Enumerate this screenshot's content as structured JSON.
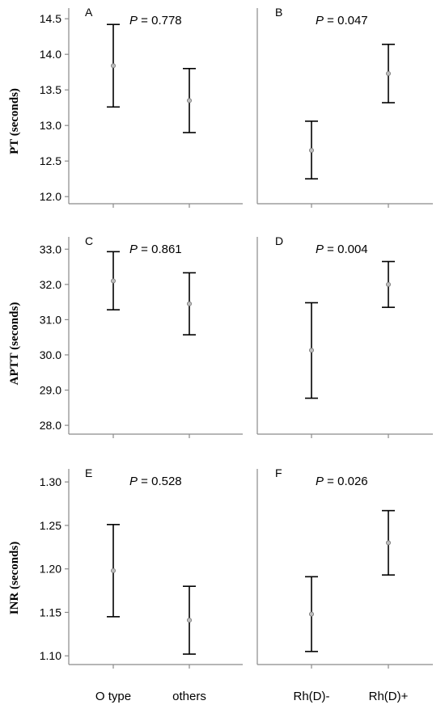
{
  "chart_data": [
    {
      "type": "errorbar",
      "panel": "A",
      "ylabel": "PT (seconds)",
      "p_prefix": "P",
      "p_text": " = 0.778",
      "categories": [
        "O type",
        "others"
      ],
      "ylim": [
        11.9,
        14.65
      ],
      "yticks": [
        "12.0",
        "12.5",
        "13.0",
        "13.5",
        "14.0",
        "14.5"
      ],
      "series": [
        {
          "mean": 13.84,
          "low": 13.26,
          "high": 14.42
        },
        {
          "mean": 13.35,
          "low": 12.9,
          "high": 13.8
        }
      ]
    },
    {
      "type": "errorbar",
      "panel": "B",
      "ylabel": "",
      "p_prefix": "P",
      "p_text": " = 0.047",
      "categories": [
        "Rh(D)-",
        "Rh(D)+"
      ],
      "ylim": [
        11.9,
        14.65
      ],
      "yticks": [],
      "series": [
        {
          "mean": 12.65,
          "low": 12.25,
          "high": 13.06
        },
        {
          "mean": 13.73,
          "low": 13.32,
          "high": 14.14
        }
      ]
    },
    {
      "type": "errorbar",
      "panel": "C",
      "ylabel": "APTT (seconds)",
      "p_prefix": "P",
      "p_text": " = 0.861",
      "categories": [
        "O type",
        "others"
      ],
      "ylim": [
        27.75,
        33.35
      ],
      "yticks": [
        "28.0",
        "29.0",
        "30.0",
        "31.0",
        "32.0",
        "33.0"
      ],
      "series": [
        {
          "mean": 32.1,
          "low": 31.28,
          "high": 32.93
        },
        {
          "mean": 31.45,
          "low": 30.57,
          "high": 32.33
        }
      ]
    },
    {
      "type": "errorbar",
      "panel": "D",
      "ylabel": "",
      "p_prefix": "P",
      "p_text": " = 0.004",
      "categories": [
        "Rh(D)-",
        "Rh(D)+"
      ],
      "ylim": [
        27.75,
        33.35
      ],
      "yticks": [],
      "series": [
        {
          "mean": 30.13,
          "low": 28.77,
          "high": 31.48
        },
        {
          "mean": 32.0,
          "low": 31.35,
          "high": 32.65
        }
      ]
    },
    {
      "type": "errorbar",
      "panel": "E",
      "ylabel": "INR (seconds)",
      "p_prefix": "P",
      "p_text": " = 0.528",
      "categories": [
        "O type",
        "others"
      ],
      "ylim": [
        1.09,
        1.315
      ],
      "yticks": [
        "1.10",
        "1.15",
        "1.20",
        "1.25",
        "1.30"
      ],
      "series": [
        {
          "mean": 1.198,
          "low": 1.145,
          "high": 1.251
        },
        {
          "mean": 1.141,
          "low": 1.102,
          "high": 1.18
        }
      ]
    },
    {
      "type": "errorbar",
      "panel": "F",
      "ylabel": "",
      "p_prefix": "P",
      "p_text": " = 0.026",
      "categories": [
        "Rh(D)-",
        "Rh(D)+"
      ],
      "ylim": [
        1.09,
        1.315
      ],
      "yticks": [],
      "series": [
        {
          "mean": 1.148,
          "low": 1.105,
          "high": 1.191
        },
        {
          "mean": 1.23,
          "low": 1.193,
          "high": 1.267
        }
      ]
    }
  ],
  "x_labels": {
    "left": [
      "O type",
      "others"
    ],
    "right": [
      "Rh(D)-",
      "Rh(D)+"
    ]
  }
}
